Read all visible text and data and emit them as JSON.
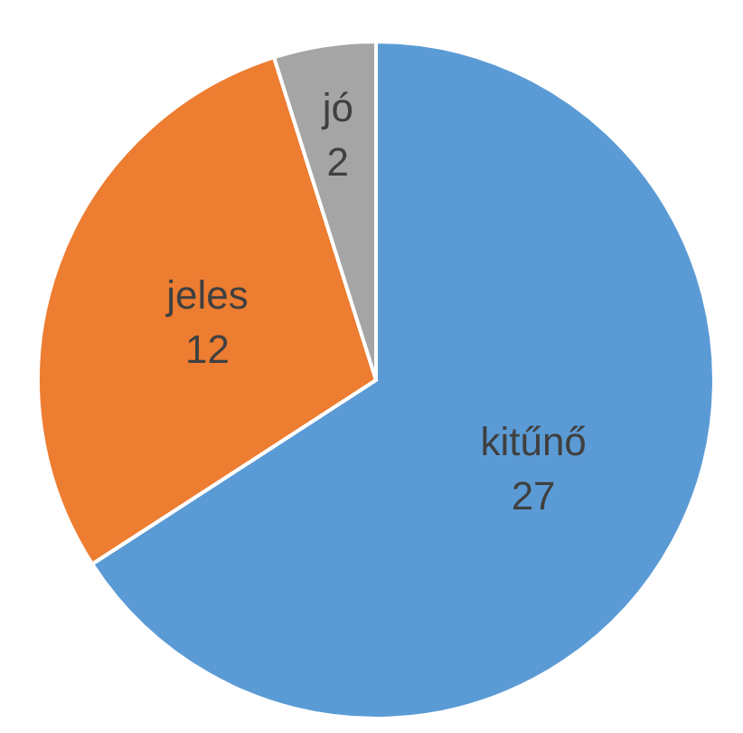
{
  "chart_data": {
    "type": "pie",
    "categories": [
      "kitűnő",
      "jeles",
      "jó"
    ],
    "values": [
      27,
      12,
      2
    ],
    "colors": [
      "#5b9bd5",
      "#ed7d31",
      "#a5a5a5"
    ],
    "data_labels": true
  }
}
